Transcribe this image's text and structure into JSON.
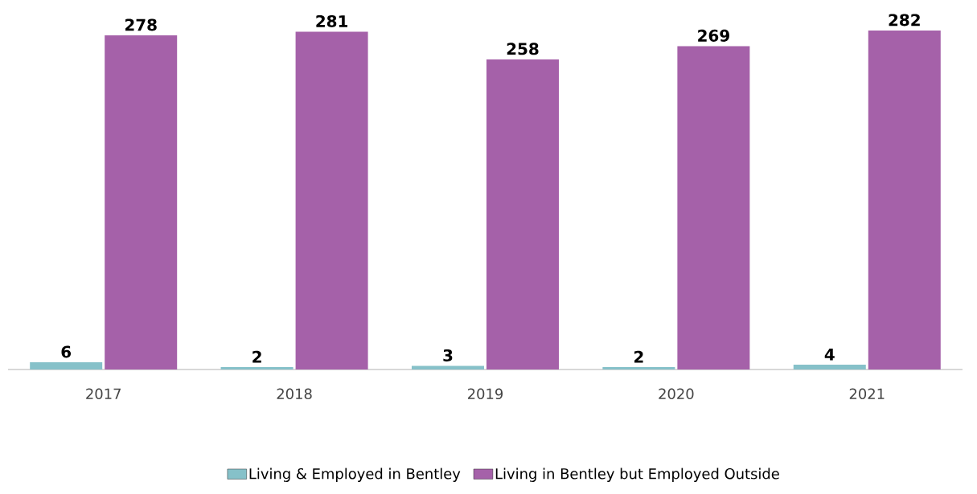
{
  "chart_data": {
    "type": "bar",
    "categories": [
      "2017",
      "2018",
      "2019",
      "2020",
      "2021"
    ],
    "series": [
      {
        "name": "Living & Employed in Bentley",
        "color": "#86c1c9",
        "values": [
          6,
          2,
          3,
          2,
          4
        ]
      },
      {
        "name": "Living in Bentley but Employed Outside",
        "color": "#a561a9",
        "values": [
          278,
          281,
          258,
          269,
          282
        ]
      }
    ],
    "data_labels": true,
    "legend": "bottom",
    "grid": false
  }
}
